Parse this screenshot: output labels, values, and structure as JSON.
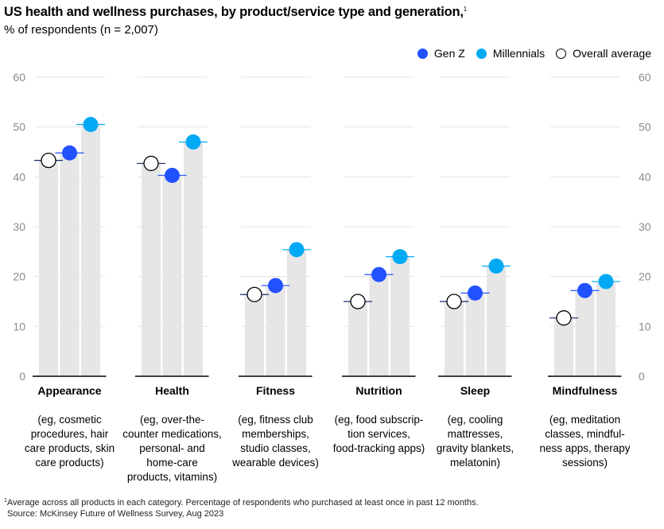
{
  "header": {
    "title": "US health and wellness purchases, by product/service type and generation,",
    "title_sup": "1",
    "subtitle": "% of respondents (n = 2,007)"
  },
  "legend": {
    "items": [
      {
        "label": "Gen Z",
        "color": "#2251ff",
        "style": "filled"
      },
      {
        "label": "Millennials",
        "color": "#00a9f4",
        "style": "filled"
      },
      {
        "label": "Overall average",
        "color": "#ffffff",
        "style": "hollow"
      }
    ]
  },
  "chart_data": {
    "type": "bar",
    "title": "US health and wellness purchases, by product/service type and generation,",
    "ylabel": "% of respondents (n = 2,007)",
    "ylim": [
      0,
      60
    ],
    "yticks": [
      0,
      10,
      20,
      30,
      40,
      50,
      60
    ],
    "grid": true,
    "legend_position": "top-right",
    "categories": [
      {
        "name": "Appearance",
        "description": "(eg, cosmetic\nprocedures, hair\ncare products, skin\ncare products)"
      },
      {
        "name": "Health",
        "description": "(eg, over-the-\ncounter medications,\npersonal- and\nhome-care\nproducts, vitamins)"
      },
      {
        "name": "Fitness",
        "description": "(eg, fitness club\nmemberships,\nstudio classes,\nwearable devices)"
      },
      {
        "name": "Nutrition",
        "description": "(eg, food subscrip-\ntion services,\nfood-tracking apps)"
      },
      {
        "name": "Sleep",
        "description": "(eg, cooling\nmattresses,\ngravity blankets,\nmelatonin)"
      },
      {
        "name": "Mindfulness",
        "description": "(eg, meditation\nclasses, mindful-\nness apps, therapy\nsessions)"
      }
    ],
    "series": [
      {
        "name": "Overall average",
        "color": "#ffffff",
        "values": [
          43.3,
          42.7,
          16.4,
          15.0,
          15.0,
          11.7
        ]
      },
      {
        "name": "Gen Z",
        "color": "#2251ff",
        "values": [
          44.8,
          40.3,
          18.2,
          20.4,
          16.7,
          17.2
        ]
      },
      {
        "name": "Millennials",
        "color": "#00a9f4",
        "values": [
          50.5,
          47.0,
          25.4,
          24.0,
          22.1,
          19.0
        ]
      }
    ]
  },
  "footnote": {
    "sup": "1",
    "line1": "Average across all products in each category. Percentage of respondents who purchased at least once in past 12 months.",
    "line2": "Source: McKinsey Future of Wellness Survey, Aug 2023"
  }
}
